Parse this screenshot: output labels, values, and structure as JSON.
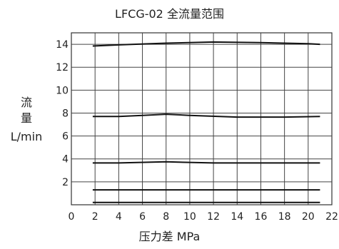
{
  "chart_data": {
    "type": "line",
    "title": "LFCG-02 全流量范围",
    "ylabel_line1": "流",
    "ylabel_line2": "量",
    "ylabel_unit": "L/min",
    "xlabel": "压力差 MPa",
    "xlim": [
      0,
      22
    ],
    "ylim": [
      0,
      15
    ],
    "x_ticks": [
      0,
      2,
      4,
      6,
      8,
      10,
      12,
      14,
      16,
      18,
      20,
      22
    ],
    "y_ticks": [
      2,
      4,
      6,
      8,
      10,
      12,
      14
    ],
    "grid": true,
    "series": [
      {
        "x": [
          1.8,
          4,
          8,
          12,
          16,
          20,
          21
        ],
        "y": [
          13.85,
          13.95,
          14.1,
          14.2,
          14.15,
          14.05,
          14.0
        ]
      },
      {
        "x": [
          1.8,
          4,
          6,
          8,
          10,
          14,
          18,
          21
        ],
        "y": [
          7.7,
          7.7,
          7.8,
          7.9,
          7.8,
          7.65,
          7.65,
          7.7
        ]
      },
      {
        "x": [
          1.8,
          4,
          8,
          12,
          16,
          21
        ],
        "y": [
          3.65,
          3.65,
          3.75,
          3.65,
          3.65,
          3.65
        ]
      },
      {
        "x": [
          1.8,
          21
        ],
        "y": [
          1.3,
          1.3
        ]
      },
      {
        "x": [
          1.8,
          21
        ],
        "y": [
          0.2,
          0.2
        ]
      }
    ]
  }
}
